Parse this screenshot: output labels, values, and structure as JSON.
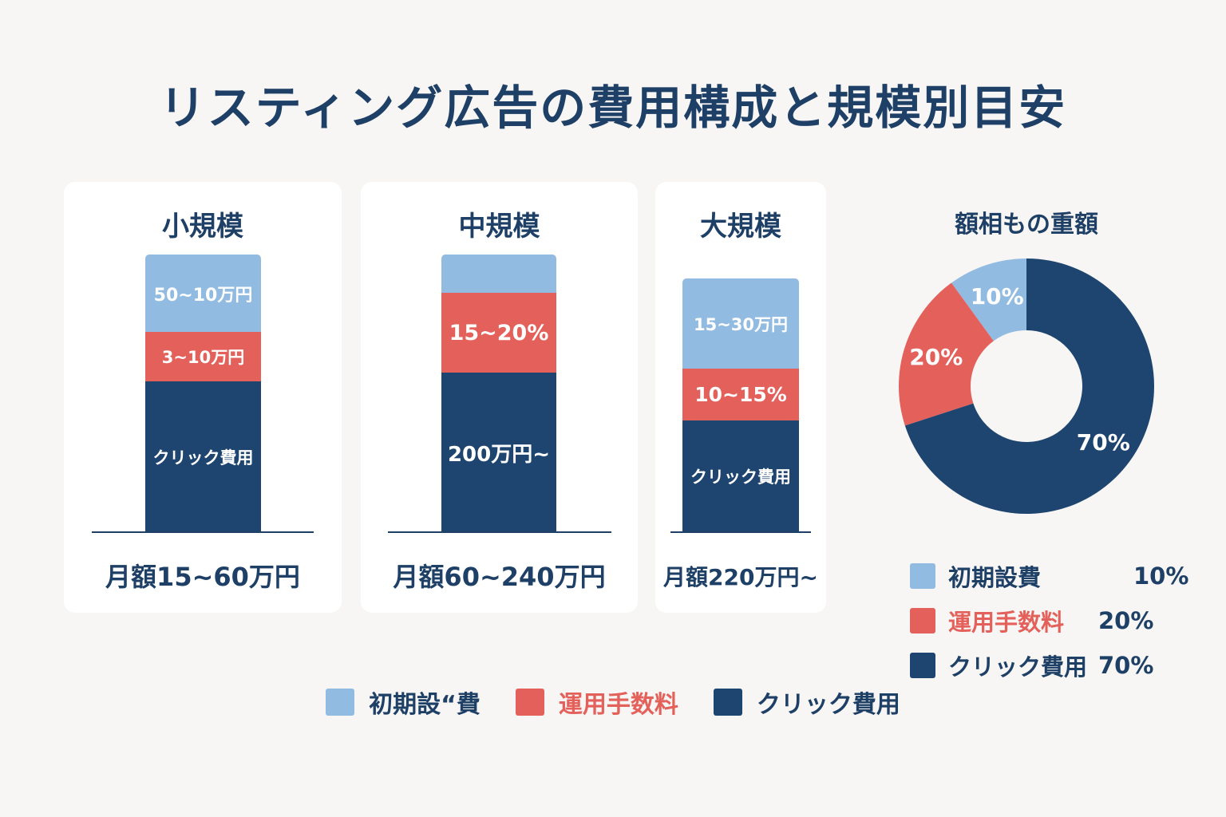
{
  "title": "リスティング広告の費用構成と規模別目安",
  "colors": {
    "setup": "#92bbe2",
    "ops": "#e4605a",
    "click": "#1e4570",
    "text": "#1e3f66"
  },
  "chart_data": [
    {
      "type": "bar",
      "stacked": true,
      "categories": [
        "小規模",
        "中規模",
        "大規模"
      ],
      "segment_labels": [
        [
          "50~10万円",
          "3~10万円",
          "クリック費用"
        ],
        [
          "",
          "15~20%",
          "200万円~"
        ],
        [
          "15~30万円",
          "10~15%",
          "クリック費用"
        ]
      ],
      "totals": [
        "月額15~60万円",
        "月額60~240万円",
        "月額220万円~"
      ],
      "legend": [
        "初期設“費",
        "運用手数料",
        "クリック費用"
      ],
      "legend_placement": "bottom"
    },
    {
      "type": "pie",
      "title": "額相もの重額",
      "slices": [
        {
          "label": "初期設費",
          "value": 10,
          "display": "10%"
        },
        {
          "label": "運用手数料",
          "value": 20,
          "display": "20%"
        },
        {
          "label": "クリック費用",
          "value": 70,
          "display": "70%"
        }
      ],
      "legend_placement": "bottom"
    }
  ]
}
